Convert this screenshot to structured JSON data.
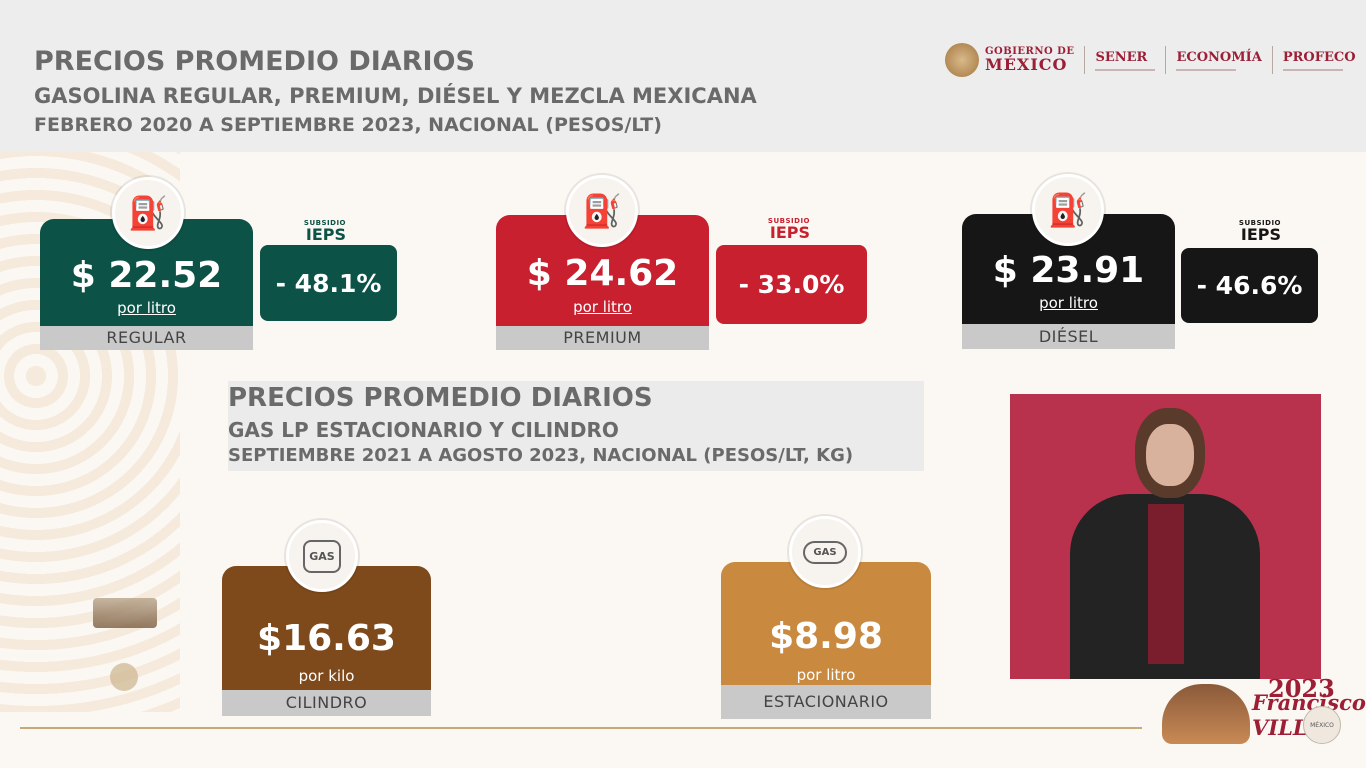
{
  "header": {
    "title": "PRECIOS PROMEDIO DIARIOS",
    "subtitle": "GASOLINA REGULAR, PREMIUM, DIÉSEL Y MEZCLA MEXICANA",
    "subtitle2": "FEBRERO 2020 A SEPTIEMBRE 2023, NACIONAL (PESOS/LT)"
  },
  "logos": {
    "gob_line1": "GOBIERNO DE",
    "gob_line2": "MÉXICO",
    "agencies": [
      "SENER",
      "ECONOMÍA",
      "PROFECO"
    ]
  },
  "fuel_cards": [
    {
      "price": "$ 22.52",
      "unit": "por litro",
      "label": "REGULAR",
      "subsidio_small": "SUBSIDIO",
      "subsidio_big": "IEPS",
      "percent": "- 48.1%",
      "color": "#0c5246",
      "icon": "gas-pump-icon"
    },
    {
      "price": "$ 24.62",
      "unit": "por litro",
      "label": "PREMIUM",
      "subsidio_small": "SUBSIDIO",
      "subsidio_big": "IEPS",
      "percent": "- 33.0%",
      "color": "#c8202f",
      "icon": "gas-pump-icon"
    },
    {
      "price": "$ 23.91",
      "unit": "por litro",
      "label": "DIÉSEL",
      "subsidio_small": "SUBSIDIO",
      "subsidio_big": "IEPS",
      "percent": "- 46.6%",
      "color": "#161616",
      "icon": "gas-pump-icon"
    }
  ],
  "section2": {
    "title": "PRECIOS PROMEDIO DIARIOS",
    "subtitle": "GAS LP ESTACIONARIO Y CILINDRO",
    "subtitle2": "SEPTIEMBRE 2021 A AGOSTO 2023, NACIONAL (PESOS/LT, KG)"
  },
  "gas_cards": [
    {
      "price": "$16.63",
      "unit": "por kilo",
      "label": "CILINDRO",
      "icon_text": "GAS",
      "color": "#7e4a1c"
    },
    {
      "price": "$8.98",
      "unit": "por litro",
      "label": "ESTACIONARIO",
      "icon_text": "GAS",
      "color": "#c98a3f"
    }
  ],
  "footer": {
    "year": "2023",
    "name": "Francisco VILLA",
    "seal_text": "MÉXICO"
  }
}
